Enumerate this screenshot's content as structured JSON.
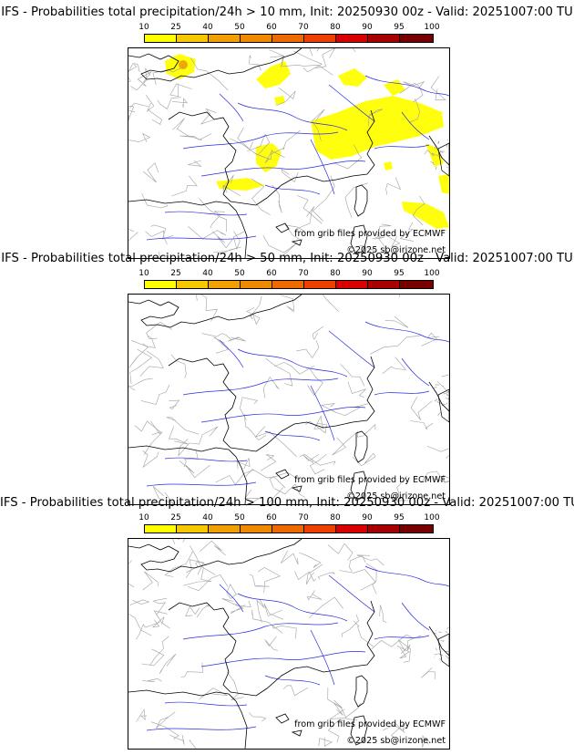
{
  "legend": {
    "ticks": [
      "10",
      "25",
      "40",
      "50",
      "60",
      "70",
      "80",
      "90",
      "95",
      "100"
    ],
    "colors": [
      "#ffff00",
      "#f5c800",
      "#f0a000",
      "#ef8a00",
      "#ee6a00",
      "#ee4000",
      "#d80000",
      "#a80000",
      "#780000"
    ]
  },
  "panels": [
    {
      "title": "IFS - Probabilities total precipitation/24h > 10 mm, Init: 20250930 00z - Valid: 20251007:00 TU",
      "credit_source": "from grib files provided by ECMWF",
      "credit_copyright": "©2025 sb@irizone.net",
      "precip_area_color": "#ffff00"
    },
    {
      "title": "IFS - Probabilities total precipitation/24h > 50 mm, Init: 20250930 00z - Valid: 20251007:00 TU",
      "credit_source": "from grib files provided by ECMWF",
      "credit_copyright": "©2025 sb@irizone.net"
    },
    {
      "title": "IFS - Probabilities total precipitation/24h > 100 mm, Init: 20250930 00z - Valid: 20251007:00 TU",
      "credit_source": "from grib files provided by ECMWF",
      "credit_copyright": "©2025 sb@irizone.net"
    }
  ]
}
